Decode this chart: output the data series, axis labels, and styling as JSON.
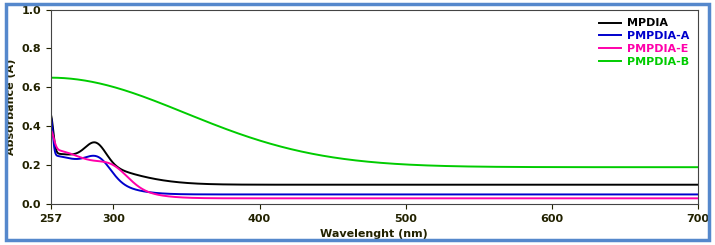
{
  "title": "",
  "xlabel": "Wavelenght (nm)",
  "ylabel": "Absorbance (A)",
  "xlim": [
    257,
    700
  ],
  "ylim": [
    0.0,
    1.0
  ],
  "xticks": [
    257,
    300,
    400,
    500,
    600,
    700
  ],
  "yticks": [
    0.0,
    0.2,
    0.4,
    0.6,
    0.8,
    1.0
  ],
  "legend": [
    {
      "label": "MPDIA",
      "color": "#000000"
    },
    {
      "label": "PMPDIA-A",
      "color": "#0000cc"
    },
    {
      "label": "PMPDIA-E",
      "color": "#ff00aa"
    },
    {
      "label": "PMPDIA-B",
      "color": "#00cc00"
    }
  ],
  "border_color": "#5588cc",
  "background_color": "#ffffff"
}
